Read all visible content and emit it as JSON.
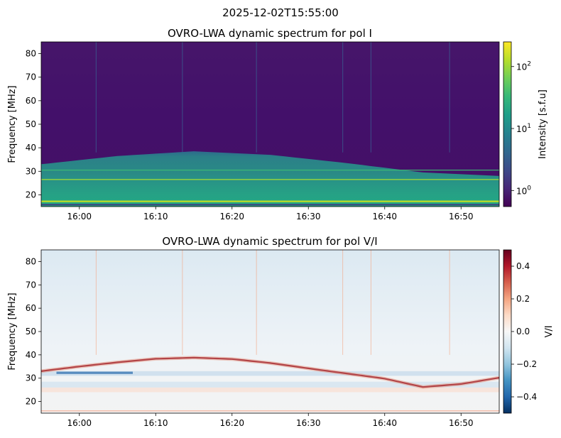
{
  "figure": {
    "suptitle": "2025-12-02T15:55:00"
  },
  "colors": {
    "viridis": [
      "#440154",
      "#482878",
      "#3e4a89",
      "#31688e",
      "#26828e",
      "#1f9e89",
      "#35b779",
      "#6ece58",
      "#b5de2b",
      "#fde725"
    ],
    "rdbu_r": [
      "#053061",
      "#2166ac",
      "#4393c3",
      "#92c5de",
      "#d1e5f0",
      "#f7f7f7",
      "#fddbc7",
      "#f4a582",
      "#d6604d",
      "#b2182b",
      "#67001f"
    ]
  },
  "chart_data": [
    {
      "type": "heatmap",
      "title": "OVRO-LWA dynamic spectrum for pol I",
      "xlabel": "",
      "ylabel": "Frequency [MHz]",
      "x_ticks": [
        "16:00",
        "16:10",
        "16:20",
        "16:30",
        "16:40",
        "16:50"
      ],
      "x_tick_minutes": [
        5,
        15,
        25,
        35,
        45,
        55
      ],
      "xlim_minutes_after_1555": [
        0,
        60
      ],
      "y_ticks": [
        20,
        30,
        40,
        50,
        60,
        70,
        80
      ],
      "ylim": [
        15,
        85
      ],
      "colormap": "viridis",
      "colorbar": {
        "label": "Intensity [s.f.u]",
        "scale": "log",
        "range": [
          0.55,
          250
        ],
        "ticks": [
          1,
          10,
          100
        ],
        "tick_labels": [
          "10",
          "10",
          "10"
        ],
        "tick_exponents": [
          "0",
          "1",
          "2"
        ]
      },
      "features": [
        {
          "kind": "emission-band-top-edge",
          "minutes": [
            0,
            10,
            20,
            30,
            40,
            50,
            60
          ],
          "freq_mhz": [
            33,
            36.5,
            38.5,
            37,
            33.5,
            29.5,
            28
          ]
        },
        {
          "kind": "bright-line",
          "freq_mhz": 17.2
        },
        {
          "kind": "bright-line",
          "freq_mhz": 26.5
        },
        {
          "kind": "bright-line",
          "freq_mhz": 30.5
        },
        {
          "kind": "dark-line",
          "freq_mhz": 15.8
        },
        {
          "kind": "rfi-streaks",
          "minutes": [
            7.2,
            18.5,
            28.2,
            39.5,
            43.2,
            53.5
          ]
        }
      ]
    },
    {
      "type": "heatmap",
      "title": "OVRO-LWA dynamic spectrum for pol V/I",
      "xlabel": "",
      "ylabel": "Frequency [MHz]",
      "x_ticks": [
        "16:00",
        "16:10",
        "16:20",
        "16:30",
        "16:40",
        "16:50"
      ],
      "x_tick_minutes": [
        5,
        15,
        25,
        35,
        45,
        55
      ],
      "xlim_minutes_after_1555": [
        0,
        60
      ],
      "y_ticks": [
        20,
        30,
        40,
        50,
        60,
        70,
        80
      ],
      "ylim": [
        15,
        85
      ],
      "colormap": "RdBu_r",
      "colorbar": {
        "label": "V/I",
        "scale": "linear",
        "range": [
          -0.5,
          0.5
        ],
        "ticks": [
          0.4,
          0.2,
          0.0,
          -0.2,
          -0.4
        ],
        "tick_labels": [
          "0.4",
          "0.2",
          "0.0",
          "−0.2",
          "−0.4"
        ]
      },
      "features": [
        {
          "kind": "positive-ridge",
          "minutes": [
            0,
            5,
            10,
            15,
            20,
            25,
            30,
            35,
            40,
            45,
            50,
            55,
            60
          ],
          "freq_mhz": [
            33,
            35,
            36.8,
            38.3,
            38.8,
            38.2,
            36.5,
            34.2,
            32,
            29.8,
            26.2,
            27.5,
            30.2
          ]
        },
        {
          "kind": "negative-patch",
          "minutes": [
            2,
            12
          ],
          "freq_mhz": [
            31.8,
            32.8
          ]
        },
        {
          "kind": "mixed-band",
          "freq_mhz": [
            24,
            33
          ]
        }
      ]
    }
  ]
}
